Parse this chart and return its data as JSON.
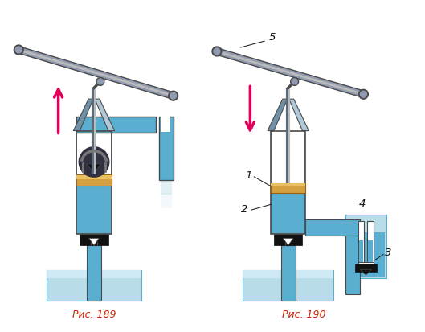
{
  "fig_width": 5.29,
  "fig_height": 4.13,
  "dpi": 100,
  "bg_color": "#ffffff",
  "blue_light": "#aed6e8",
  "blue_mid": "#5aafd0",
  "blue_dark": "#3a8fb5",
  "blue_water_basin": "#b8dde8",
  "gray_dark": "#4a4a4a",
  "gray_mid": "#777777",
  "gray_light": "#bbbbbb",
  "gray_funnel": "#8fa8bc",
  "brown_dark": "#a06010",
  "brown_light": "#d4a040",
  "black": "#111111",
  "arrow_pink": "#e0005a",
  "caption_color": "#cc2200",
  "label_color": "#111111",
  "caption1": "Рис. 189",
  "caption2": "Рис. 190"
}
